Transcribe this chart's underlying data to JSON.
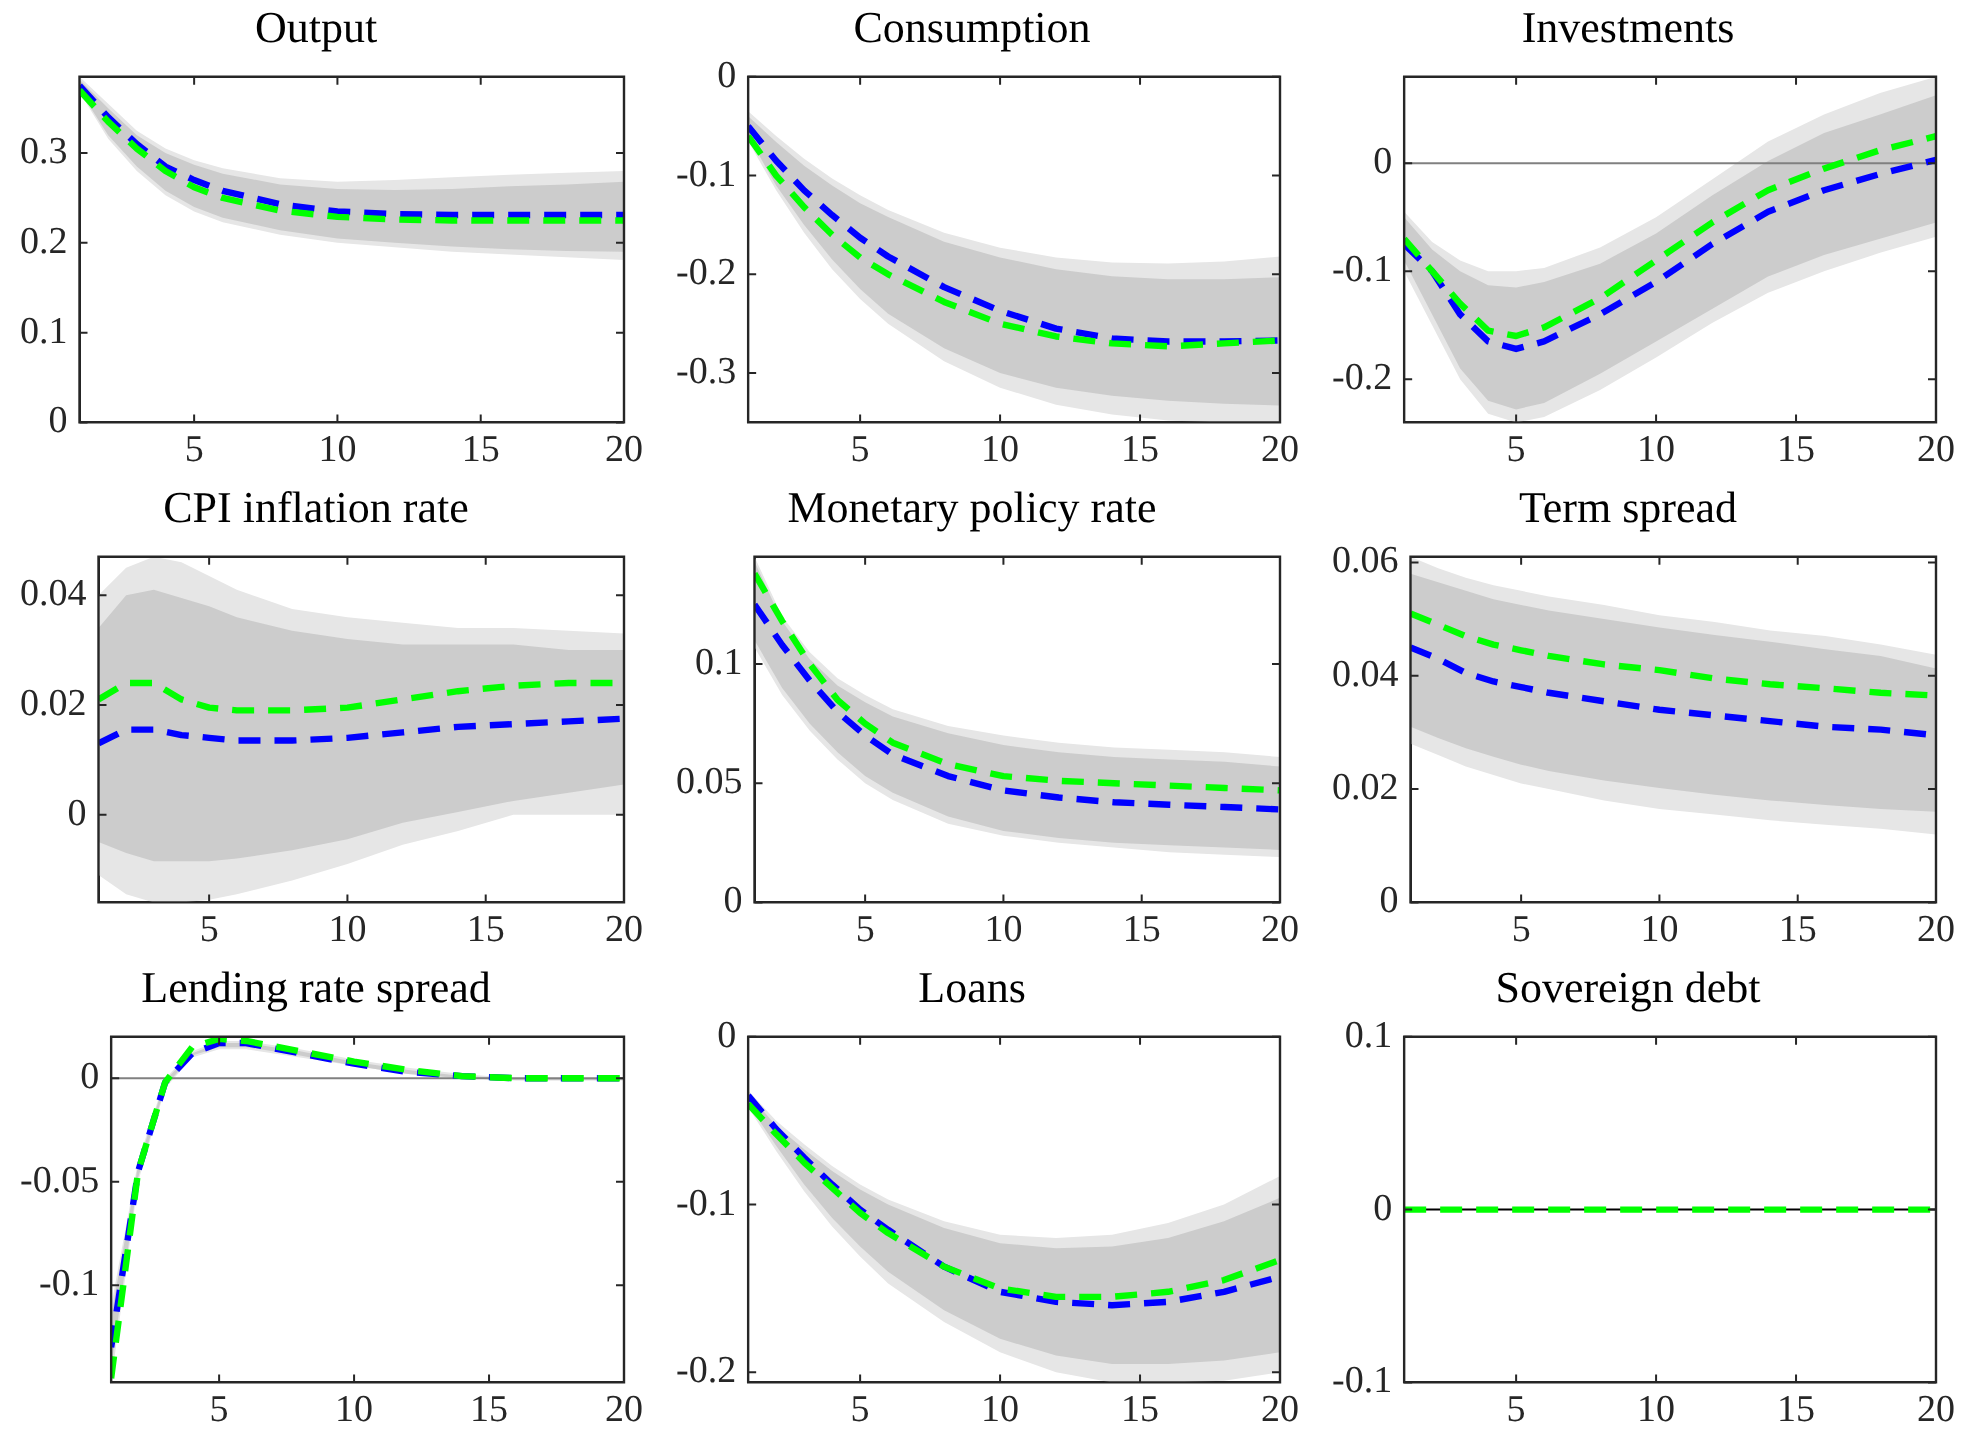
{
  "chart_data": [
    {
      "type": "line",
      "title": "Output",
      "x": [
        1,
        2,
        3,
        4,
        5,
        6,
        8,
        10,
        12,
        14,
        16,
        18,
        20
      ],
      "xlim": [
        1,
        20
      ],
      "xticks": [
        5,
        10,
        15,
        20
      ],
      "ylim": [
        0,
        0.385
      ],
      "yticks": [
        0,
        0.1,
        0.2,
        0.3
      ],
      "line_style": "dashed",
      "series": [
        {
          "color": "#0000ff",
          "values": [
            0.375,
            0.34,
            0.31,
            0.285,
            0.27,
            0.258,
            0.243,
            0.235,
            0.232,
            0.231,
            0.231,
            0.231,
            0.231
          ],
          "lower": [
            0.37,
            0.32,
            0.285,
            0.258,
            0.24,
            0.228,
            0.214,
            0.205,
            0.2,
            0.196,
            0.193,
            0.191,
            0.19
          ],
          "upper": [
            0.382,
            0.35,
            0.32,
            0.3,
            0.287,
            0.277,
            0.265,
            0.26,
            0.259,
            0.26,
            0.263,
            0.265,
            0.268
          ]
        },
        {
          "color": "#00ff00",
          "values": [
            0.37,
            0.335,
            0.305,
            0.28,
            0.262,
            0.25,
            0.236,
            0.229,
            0.226,
            0.225,
            0.225,
            0.225,
            0.225
          ],
          "lower": [
            0.368,
            0.316,
            0.28,
            0.253,
            0.235,
            0.223,
            0.209,
            0.2,
            0.195,
            0.19,
            0.187,
            0.184,
            0.181
          ],
          "upper": [
            0.385,
            0.355,
            0.325,
            0.305,
            0.292,
            0.283,
            0.272,
            0.268,
            0.27,
            0.273,
            0.276,
            0.278,
            0.28
          ]
        }
      ]
    },
    {
      "type": "line",
      "title": "Consumption",
      "x": [
        1,
        2,
        3,
        4,
        5,
        6,
        8,
        10,
        12,
        14,
        16,
        18,
        20
      ],
      "xlim": [
        1,
        20
      ],
      "xticks": [
        5,
        10,
        15,
        20
      ],
      "ylim": [
        -0.35,
        0
      ],
      "yticks": [
        -0.3,
        -0.2,
        -0.1,
        0
      ],
      "line_style": "dashed",
      "series": [
        {
          "color": "#0000ff",
          "values": [
            -0.05,
            -0.085,
            -0.115,
            -0.14,
            -0.163,
            -0.182,
            -0.213,
            -0.237,
            -0.255,
            -0.265,
            -0.268,
            -0.268,
            -0.267
          ],
          "lower": [
            -0.06,
            -0.11,
            -0.15,
            -0.185,
            -0.215,
            -0.24,
            -0.275,
            -0.3,
            -0.315,
            -0.323,
            -0.328,
            -0.331,
            -0.333
          ],
          "upper": [
            -0.04,
            -0.066,
            -0.09,
            -0.11,
            -0.128,
            -0.142,
            -0.167,
            -0.183,
            -0.195,
            -0.202,
            -0.205,
            -0.205,
            -0.203
          ]
        },
        {
          "color": "#00ff00",
          "values": [
            -0.06,
            -0.1,
            -0.132,
            -0.16,
            -0.183,
            -0.2,
            -0.228,
            -0.25,
            -0.263,
            -0.27,
            -0.273,
            -0.27,
            -0.267
          ],
          "lower": [
            -0.065,
            -0.115,
            -0.158,
            -0.195,
            -0.225,
            -0.25,
            -0.288,
            -0.315,
            -0.332,
            -0.342,
            -0.348,
            -0.35,
            -0.35
          ],
          "upper": [
            -0.035,
            -0.06,
            -0.083,
            -0.103,
            -0.12,
            -0.135,
            -0.158,
            -0.173,
            -0.183,
            -0.188,
            -0.189,
            -0.187,
            -0.182
          ]
        }
      ]
    },
    {
      "type": "line",
      "title": "Investments",
      "x": [
        1,
        2,
        3,
        4,
        5,
        6,
        8,
        10,
        12,
        14,
        16,
        18,
        20
      ],
      "xlim": [
        1,
        20
      ],
      "xticks": [
        5,
        10,
        15,
        20
      ],
      "ylim": [
        -0.24,
        0.08
      ],
      "yticks": [
        -0.2,
        -0.1,
        0
      ],
      "line_style": "dashed",
      "ref_lines": [
        {
          "axis": "y",
          "value": 0,
          "color": "#808080"
        }
      ],
      "series": [
        {
          "color": "#0000ff",
          "values": [
            -0.075,
            -0.1,
            -0.14,
            -0.165,
            -0.172,
            -0.165,
            -0.14,
            -0.11,
            -0.075,
            -0.045,
            -0.025,
            -0.01,
            0.003
          ],
          "lower": [
            -0.09,
            -0.14,
            -0.19,
            -0.22,
            -0.228,
            -0.222,
            -0.195,
            -0.165,
            -0.135,
            -0.105,
            -0.085,
            -0.07,
            -0.055
          ],
          "upper": [
            -0.05,
            -0.08,
            -0.1,
            -0.113,
            -0.115,
            -0.11,
            -0.093,
            -0.065,
            -0.03,
            0.002,
            0.028,
            0.045,
            0.063
          ]
        },
        {
          "color": "#00ff00",
          "values": [
            -0.07,
            -0.1,
            -0.13,
            -0.155,
            -0.16,
            -0.152,
            -0.125,
            -0.09,
            -0.055,
            -0.025,
            -0.005,
            0.012,
            0.025
          ],
          "lower": [
            -0.1,
            -0.15,
            -0.2,
            -0.232,
            -0.24,
            -0.235,
            -0.21,
            -0.18,
            -0.148,
            -0.12,
            -0.1,
            -0.083,
            -0.068
          ],
          "upper": [
            -0.045,
            -0.073,
            -0.09,
            -0.1,
            -0.1,
            -0.097,
            -0.078,
            -0.05,
            -0.015,
            0.02,
            0.045,
            0.065,
            0.08
          ]
        }
      ]
    },
    {
      "type": "line",
      "title": "CPI inflation rate",
      "x": [
        1,
        2,
        3,
        4,
        5,
        6,
        8,
        10,
        12,
        14,
        16,
        18,
        20
      ],
      "xlim": [
        1,
        20
      ],
      "xticks": [
        5,
        10,
        15,
        20
      ],
      "ylim": [
        -0.016,
        0.047
      ],
      "yticks": [
        0,
        0.02,
        0.04
      ],
      "line_style": "dashed",
      "series": [
        {
          "color": "#0000ff",
          "values": [
            0.013,
            0.0155,
            0.0155,
            0.0145,
            0.014,
            0.0135,
            0.0135,
            0.014,
            0.015,
            0.016,
            0.0165,
            0.017,
            0.0175
          ],
          "lower": [
            -0.005,
            -0.007,
            -0.0085,
            -0.0085,
            -0.0085,
            -0.008,
            -0.0065,
            -0.0045,
            -0.0015,
            0.0005,
            0.0025,
            0.004,
            0.0055
          ],
          "upper": [
            0.034,
            0.04,
            0.041,
            0.0395,
            0.038,
            0.036,
            0.0335,
            0.032,
            0.031,
            0.031,
            0.031,
            0.03,
            0.03
          ]
        },
        {
          "color": "#00ff00",
          "values": [
            0.021,
            0.024,
            0.024,
            0.021,
            0.0195,
            0.019,
            0.019,
            0.0195,
            0.021,
            0.0225,
            0.0235,
            0.024,
            0.024
          ],
          "lower": [
            -0.011,
            -0.0145,
            -0.016,
            -0.016,
            -0.0155,
            -0.0145,
            -0.012,
            -0.009,
            -0.0055,
            -0.003,
            0,
            0,
            0
          ],
          "upper": [
            0.04,
            0.045,
            0.047,
            0.046,
            0.0435,
            0.041,
            0.0375,
            0.036,
            0.035,
            0.034,
            0.034,
            0.0335,
            0.033
          ]
        }
      ]
    },
    {
      "type": "line",
      "title": "Monetary policy rate",
      "x": [
        1,
        2,
        3,
        4,
        5,
        6,
        8,
        10,
        12,
        14,
        16,
        18,
        20
      ],
      "xlim": [
        1,
        20
      ],
      "xticks": [
        5,
        10,
        15,
        20
      ],
      "ylim": [
        0,
        0.145
      ],
      "yticks": [
        0,
        0.05,
        0.1
      ],
      "line_style": "dashed",
      "series": [
        {
          "color": "#0000ff",
          "values": [
            0.125,
            0.108,
            0.093,
            0.08,
            0.07,
            0.062,
            0.053,
            0.047,
            0.044,
            0.042,
            0.041,
            0.04,
            0.039
          ],
          "lower": [
            0.11,
            0.09,
            0.075,
            0.063,
            0.053,
            0.046,
            0.036,
            0.03,
            0.027,
            0.025,
            0.024,
            0.023,
            0.022
          ],
          "upper": [
            0.143,
            0.118,
            0.102,
            0.091,
            0.084,
            0.078,
            0.071,
            0.066,
            0.063,
            0.061,
            0.06,
            0.059,
            0.057
          ]
        },
        {
          "color": "#00ff00",
          "values": [
            0.138,
            0.118,
            0.1,
            0.085,
            0.075,
            0.067,
            0.058,
            0.053,
            0.051,
            0.05,
            0.049,
            0.048,
            0.047
          ],
          "lower": [
            0.107,
            0.087,
            0.072,
            0.06,
            0.05,
            0.043,
            0.033,
            0.028,
            0.025,
            0.023,
            0.021,
            0.02,
            0.019
          ],
          "upper": [
            0.145,
            0.12,
            0.105,
            0.094,
            0.087,
            0.081,
            0.074,
            0.07,
            0.067,
            0.065,
            0.064,
            0.063,
            0.061
          ]
        }
      ]
    },
    {
      "type": "line",
      "title": "Term spread",
      "x": [
        1,
        2,
        3,
        4,
        5,
        6,
        8,
        10,
        12,
        14,
        16,
        18,
        20
      ],
      "xlim": [
        1,
        20
      ],
      "xticks": [
        5,
        10,
        15,
        20
      ],
      "ylim": [
        0,
        0.061
      ],
      "yticks": [
        0,
        0.02,
        0.04,
        0.06
      ],
      "line_style": "dashed",
      "series": [
        {
          "color": "#0000ff",
          "values": [
            0.045,
            0.043,
            0.0405,
            0.039,
            0.038,
            0.037,
            0.0355,
            0.034,
            0.033,
            0.032,
            0.031,
            0.0305,
            0.0295
          ],
          "lower": [
            0.031,
            0.029,
            0.0272,
            0.0257,
            0.0243,
            0.0232,
            0.0215,
            0.0202,
            0.019,
            0.018,
            0.0172,
            0.0165,
            0.016
          ],
          "upper": [
            0.058,
            0.0565,
            0.055,
            0.0535,
            0.0525,
            0.0515,
            0.05,
            0.0485,
            0.0472,
            0.046,
            0.0447,
            0.0435,
            0.0413
          ]
        },
        {
          "color": "#00ff00",
          "values": [
            0.051,
            0.049,
            0.047,
            0.0455,
            0.0445,
            0.0435,
            0.042,
            0.041,
            0.0395,
            0.0385,
            0.0378,
            0.037,
            0.0365
          ],
          "lower": [
            0.028,
            0.026,
            0.024,
            0.0225,
            0.021,
            0.02,
            0.018,
            0.0165,
            0.0155,
            0.0145,
            0.0137,
            0.013,
            0.012
          ],
          "upper": [
            0.061,
            0.059,
            0.0573,
            0.056,
            0.055,
            0.054,
            0.0525,
            0.0507,
            0.0495,
            0.048,
            0.047,
            0.0455,
            0.0437
          ]
        }
      ]
    },
    {
      "type": "line",
      "title": "Lending rate spread",
      "x": [
        1,
        2,
        3,
        4,
        5,
        6,
        8,
        10,
        12,
        14,
        16,
        18,
        20
      ],
      "xlim": [
        1,
        20
      ],
      "xticks": [
        5,
        10,
        15,
        20
      ],
      "ylim": [
        -0.147,
        0.02
      ],
      "yticks": [
        -0.1,
        -0.05,
        0
      ],
      "line_style": "dashed",
      "ref_lines": [
        {
          "axis": "y",
          "value": 0,
          "color": "#808080"
        }
      ],
      "series": [
        {
          "color": "#0000ff",
          "values": [
            -0.13,
            -0.045,
            -0.002,
            0.012,
            0.017,
            0.017,
            0.012,
            0.007,
            0.003,
            0.001,
            0,
            0,
            0
          ],
          "lower": [
            -0.14,
            -0.048,
            -0.004,
            0.011,
            0.015,
            0.015,
            0.011,
            0.006,
            0.002,
            0,
            -0.001,
            -0.001,
            -0.001
          ],
          "upper": [
            -0.115,
            -0.042,
            -0.001,
            0.012,
            0.017,
            0.017,
            0.013,
            0.008,
            0.004,
            0.001,
            0,
            0,
            0
          ]
        },
        {
          "color": "#00ff00",
          "values": [
            -0.145,
            -0.045,
            -0.002,
            0.015,
            0.019,
            0.018,
            0.013,
            0.008,
            0.004,
            0.001,
            0,
            0,
            0
          ],
          "lower": [
            -0.147,
            -0.05,
            -0.005,
            0.01,
            0.014,
            0.014,
            0.01,
            0.006,
            0.002,
            0,
            -0.001,
            -0.001,
            -0.001
          ],
          "upper": [
            -0.11,
            -0.04,
            0,
            0.013,
            0.018,
            0.018,
            0.014,
            0.009,
            0.005,
            0.002,
            0,
            0,
            0
          ]
        }
      ]
    },
    {
      "type": "line",
      "title": "Loans",
      "x": [
        1,
        2,
        3,
        4,
        5,
        6,
        8,
        10,
        12,
        14,
        16,
        18,
        20
      ],
      "xlim": [
        1,
        20
      ],
      "xticks": [
        5,
        10,
        15,
        20
      ],
      "ylim": [
        -0.206,
        0
      ],
      "yticks": [
        -0.2,
        -0.1,
        0
      ],
      "line_style": "dashed",
      "series": [
        {
          "color": "#0000ff",
          "values": [
            -0.035,
            -0.055,
            -0.072,
            -0.088,
            -0.103,
            -0.115,
            -0.137,
            -0.152,
            -0.158,
            -0.16,
            -0.158,
            -0.152,
            -0.143
          ],
          "lower": [
            -0.04,
            -0.065,
            -0.088,
            -0.108,
            -0.125,
            -0.14,
            -0.163,
            -0.18,
            -0.19,
            -0.195,
            -0.195,
            -0.193,
            -0.188
          ],
          "upper": [
            -0.034,
            -0.053,
            -0.067,
            -0.08,
            -0.091,
            -0.1,
            -0.114,
            -0.123,
            -0.126,
            -0.125,
            -0.12,
            -0.11,
            -0.096
          ]
        },
        {
          "color": "#00ff00",
          "values": [
            -0.04,
            -0.058,
            -0.075,
            -0.09,
            -0.105,
            -0.117,
            -0.137,
            -0.15,
            -0.155,
            -0.155,
            -0.152,
            -0.145,
            -0.133
          ],
          "lower": [
            -0.042,
            -0.068,
            -0.092,
            -0.113,
            -0.131,
            -0.147,
            -0.17,
            -0.188,
            -0.2,
            -0.206,
            -0.206,
            -0.205,
            -0.2
          ],
          "upper": [
            -0.032,
            -0.05,
            -0.064,
            -0.077,
            -0.088,
            -0.097,
            -0.11,
            -0.118,
            -0.12,
            -0.118,
            -0.111,
            -0.1,
            -0.083
          ]
        }
      ]
    },
    {
      "type": "line",
      "title": "Sovereign debt",
      "x": [
        1,
        2,
        3,
        4,
        5,
        6,
        8,
        10,
        12,
        14,
        16,
        18,
        20
      ],
      "xlim": [
        1,
        20
      ],
      "xticks": [
        5,
        10,
        15,
        20
      ],
      "ylim": [
        -0.1,
        0.1
      ],
      "yticks": [
        -0.1,
        0,
        0.1
      ],
      "line_style": "dashed",
      "ref_lines": [
        {
          "axis": "y",
          "value": 0,
          "color": "#000000"
        }
      ],
      "series": [
        {
          "color": "#00ff00",
          "values": [
            0,
            0,
            0,
            0,
            0,
            0,
            0,
            0,
            0,
            0,
            0,
            0,
            0
          ]
        }
      ]
    }
  ]
}
